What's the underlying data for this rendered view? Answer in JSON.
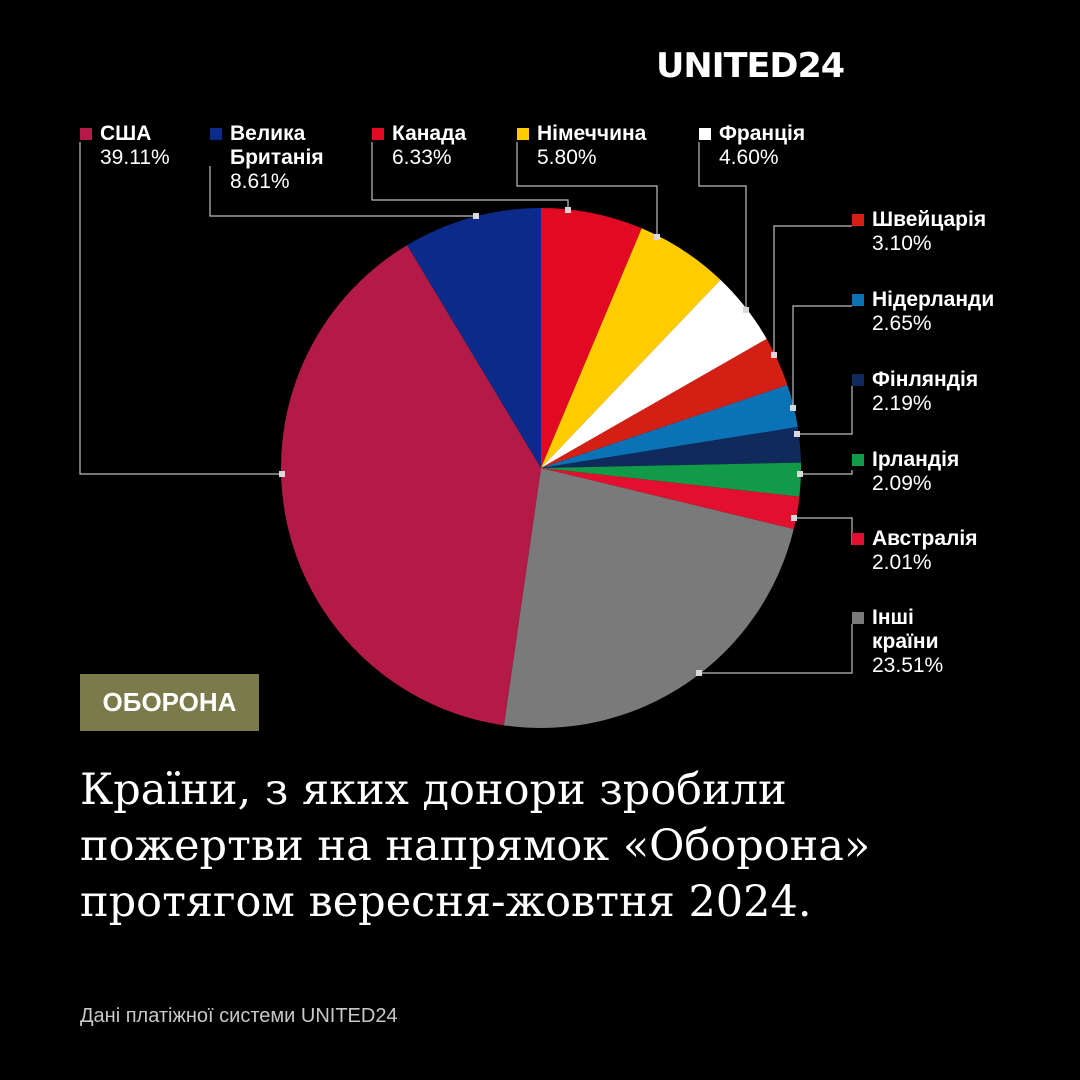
{
  "brand": {
    "logo": "UNITED24"
  },
  "badge": {
    "label": "ОБОРОНА"
  },
  "headline": {
    "line1": "Країни, з яких донори зробили",
    "line2": "пожертви на напрямок «Оборона»",
    "line3": "протягом вересня-жовтня 2024."
  },
  "footnote": "Дані платіжної системи UNITED24",
  "chart_data": {
    "type": "pie",
    "title": "",
    "start_angle_deg": 0,
    "direction": "clockwise",
    "slices": [
      {
        "label": "Канада",
        "value": 6.33,
        "value_label": "6.33%",
        "color": "#e10a22"
      },
      {
        "label": "Німеччина",
        "value": 5.8,
        "value_label": "5.80%",
        "color": "#ffcc00"
      },
      {
        "label": "Франція",
        "value": 4.6,
        "value_label": "4.60%",
        "color": "#ffffff"
      },
      {
        "label": "Швейцарія",
        "value": 3.1,
        "value_label": "3.10%",
        "color": "#d42014"
      },
      {
        "label": "Нідерланди",
        "value": 2.65,
        "value_label": "2.65%",
        "color": "#0b72b5"
      },
      {
        "label": "Фінляндія",
        "value": 2.19,
        "value_label": "2.19%",
        "color": "#112a5c"
      },
      {
        "label": "Ірландія",
        "value": 2.09,
        "value_label": "2.09%",
        "color": "#119a48"
      },
      {
        "label": "Австралія",
        "value": 2.01,
        "value_label": "2.01%",
        "color": "#e2102e"
      },
      {
        "label": "Інші країни",
        "value": 23.51,
        "value_label": "23.51%",
        "color": "#7a7a7a"
      },
      {
        "label": "США",
        "value": 39.11,
        "value_label": "39.11%",
        "color": "#b31a45"
      },
      {
        "label": "Велика Британія",
        "value": 8.61,
        "value_label": "8.61%",
        "color": "#0b2a8a"
      }
    ]
  }
}
